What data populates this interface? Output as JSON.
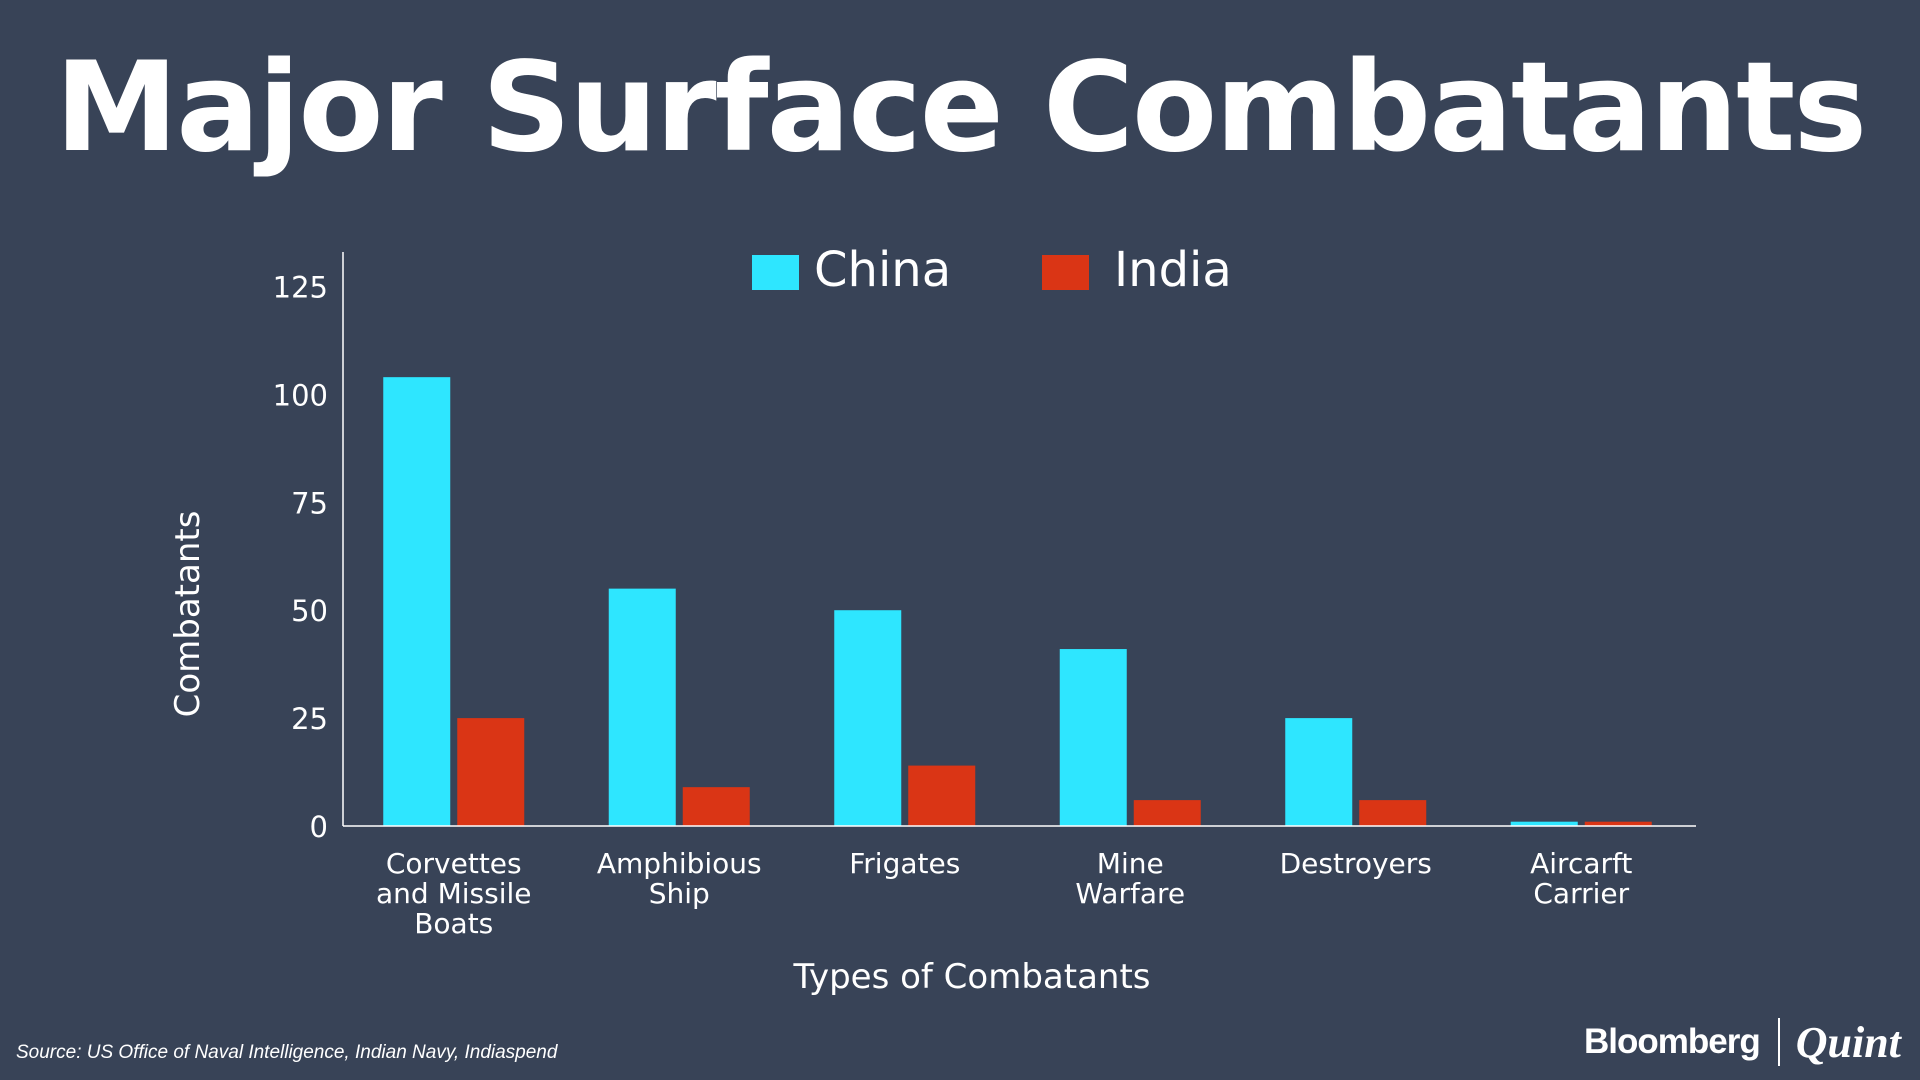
{
  "title": "Major Surface Combatants",
  "source": "Source: US Office of Naval Intelligence, Indian Navy, Indiaspend",
  "brand": {
    "primary": "Bloomberg",
    "secondary": "Quint"
  },
  "colors": {
    "background": "#384357",
    "china": "#2ee6ff",
    "india": "#da3515",
    "text": "#ffffff"
  },
  "chart_data": {
    "type": "bar",
    "title": "Major Surface Combatants",
    "xlabel": "Types of Combatants",
    "ylabel": "Combatants",
    "ylim": [
      0,
      133
    ],
    "yticks": [
      0,
      25,
      50,
      75,
      100,
      125
    ],
    "grid": false,
    "legend": "top-center",
    "categories": [
      [
        "Corvettes",
        "and Missile",
        "Boats"
      ],
      [
        "Amphibious",
        "Ship"
      ],
      [
        "Frigates"
      ],
      [
        "Mine",
        "Warfare"
      ],
      [
        "Destroyers"
      ],
      [
        "Aircarft",
        "Carrier"
      ]
    ],
    "series": [
      {
        "name": "China",
        "color": "#2ee6ff",
        "values": [
          104,
          55,
          50,
          41,
          25,
          1
        ]
      },
      {
        "name": "India",
        "color": "#da3515",
        "values": [
          25,
          9,
          14,
          6,
          6,
          1
        ]
      }
    ]
  }
}
